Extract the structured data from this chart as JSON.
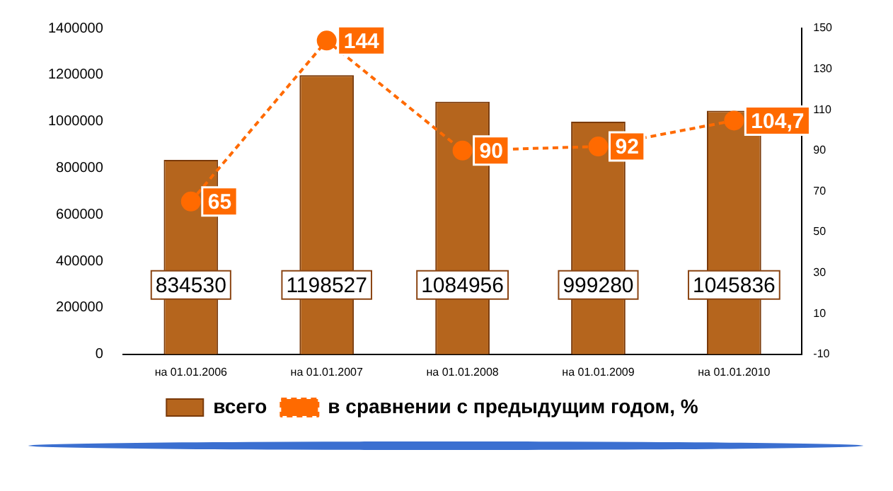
{
  "chart_data": {
    "type": "bar",
    "categories": [
      "на 01.01.2006",
      "на 01.01.2007",
      "на 01.01.2008",
      "на 01.01.2009",
      "на 01.01.2010"
    ],
    "series": [
      {
        "name": "всего",
        "color": "#b5651d",
        "values": [
          834530,
          1198527,
          1084956,
          999280,
          1045836
        ],
        "value_labels": [
          "834530",
          "1198527",
          "1084956",
          "999280",
          "1045836"
        ]
      },
      {
        "name": "в сравнении с предыдущим годом, %",
        "type": "line",
        "axis": "y2",
        "color": "#ff6a00",
        "values": [
          65,
          144,
          90,
          92,
          104.7
        ],
        "value_labels": [
          "65",
          "144",
          "90",
          "92",
          "104,7"
        ]
      }
    ],
    "ylim": [
      0,
      1400000
    ],
    "yticks": [
      0,
      200000,
      400000,
      600000,
      800000,
      1000000,
      1200000,
      1400000
    ],
    "y2lim": [
      -10,
      150
    ],
    "y2ticks": [
      -10,
      10,
      30,
      50,
      70,
      90,
      110,
      130,
      150
    ],
    "grid": false,
    "legend": "bottom",
    "marker": "circle",
    "line_style": "dashed"
  }
}
